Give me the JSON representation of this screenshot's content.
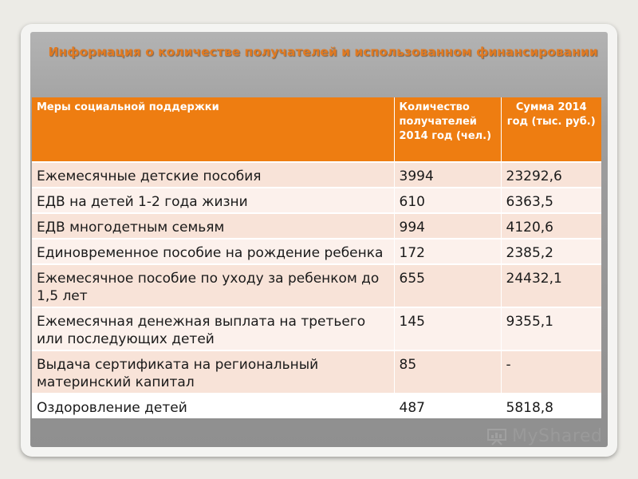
{
  "slide": {
    "title": "Информация о количестве получателей и использованном финансировании"
  },
  "table": {
    "headers": [
      "Меры социальной поддержки",
      "Количество получателей 2014 год (чел.)",
      "Сумма 2014 год  (тыс. руб.)"
    ],
    "rows": [
      [
        "Ежемесячные детские пособия",
        "3994",
        "23292,6"
      ],
      [
        "ЕДВ на детей 1-2 года жизни",
        "610",
        "6363,5"
      ],
      [
        "ЕДВ многодетным семьям",
        "994",
        "4120,6"
      ],
      [
        "Единовременное пособие на рождение ребенка",
        "172",
        "2385,2"
      ],
      [
        "Ежемесячное пособие по уходу за ребенком до 1,5 лет",
        "655",
        "24432,1"
      ],
      [
        "Ежемесячная денежная выплата на третьего или последующих детей",
        "145",
        "9355,1"
      ],
      [
        "Выдача сертификата на региональный материнский капитал",
        "85",
        "-"
      ],
      [
        "Оздоровление детей",
        "487",
        "5818,8"
      ]
    ]
  },
  "watermark": {
    "text": "MyShared",
    "icon": "presentation-board-icon"
  },
  "colors": {
    "header_bg": "#ee7d11",
    "title": "#e07a22",
    "row_odd": "#f8e3d8",
    "row_even": "#fcf1ec"
  }
}
